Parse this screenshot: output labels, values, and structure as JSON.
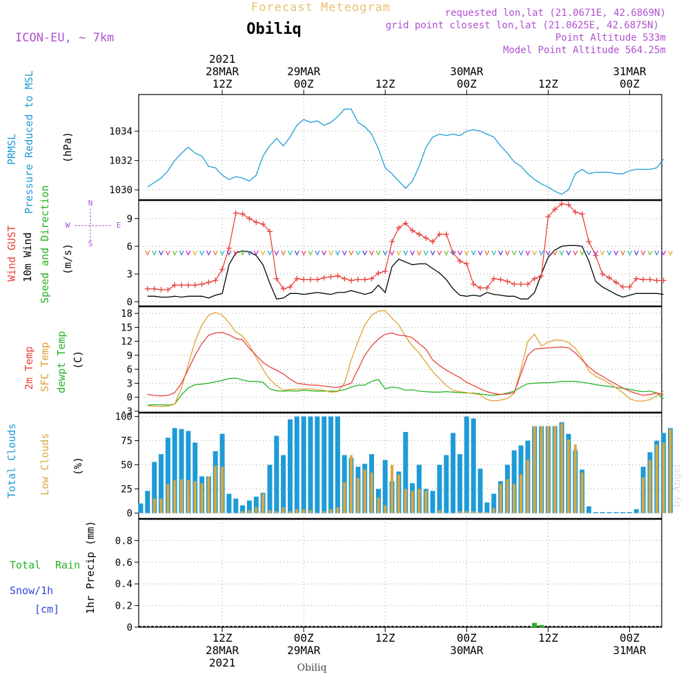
{
  "header": {
    "title": "Forecast Meteogram",
    "location": "Obiliq",
    "model": "ICON-EU, ~ 7km",
    "requested": "requested lon,lat (21.0671E, 42.6869N)",
    "gridpoint": "grid point closest lon,lat (21.0625E, 42.6875N)",
    "point_alt": "Point Altitude 533m",
    "model_alt": "Model Point Altitude 564.25m",
    "footer": "Obiliq",
    "credit": "by Angel"
  },
  "time_axis": {
    "year": "2021",
    "ticks": [
      {
        "t": 12,
        "top": [
          "2021",
          "28MAR",
          "12Z"
        ],
        "bottom": [
          "12Z",
          "28MAR",
          "2021"
        ]
      },
      {
        "t": 24,
        "top": [
          "29MAR",
          "00Z"
        ],
        "bottom": [
          "00Z",
          "29MAR"
        ]
      },
      {
        "t": 36,
        "top": [
          "12Z"
        ],
        "bottom": [
          "12Z"
        ]
      },
      {
        "t": 48,
        "top": [
          "30MAR",
          "00Z"
        ],
        "bottom": [
          "00Z",
          "30MAR"
        ]
      },
      {
        "t": 60,
        "top": [
          "12Z"
        ],
        "bottom": [
          "12Z"
        ]
      },
      {
        "t": 72,
        "top": [
          "31MAR",
          "00Z"
        ],
        "bottom": [
          "00Z",
          "31MAR"
        ]
      }
    ]
  },
  "panels": {
    "pressure": {
      "labels": [
        "PRMSL",
        "Pressure Reduced to MSL",
        "(hPa)"
      ],
      "colors": [
        "#1e9bd7",
        "#1e9bd7",
        "#000000"
      ]
    },
    "wind": {
      "labels": [
        "Wind GUST",
        "10m Wind",
        "Speed and Direction",
        "(m/s)"
      ],
      "colors": [
        "#e8413c",
        "#000000",
        "#22b322",
        "#000000"
      ],
      "compass": {
        "n": "N",
        "s": "S",
        "w": "W",
        "e": "E"
      }
    },
    "temp": {
      "labels": [
        "2m Temp",
        "SFC Temp",
        "dewpt Temp",
        "(C)"
      ],
      "colors": [
        "#e8413c",
        "#e0a030",
        "#22b322",
        "#000000"
      ]
    },
    "clouds": {
      "labels": [
        "Total Clouds",
        "Low Clouds",
        "(%)"
      ],
      "colors": [
        "#1e9bd7",
        "#d8a840",
        "#000000"
      ]
    },
    "precip": {
      "labels": [
        "Total",
        "Rain",
        "Snow/1h",
        "[cm]",
        "1hr Precip (mm)"
      ],
      "colors": [
        "#22b322",
        "#22b322",
        "#3344dd",
        "#3344dd",
        "#000000"
      ]
    }
  },
  "colors": {
    "pressure": "#1e9bd7",
    "gust": "#e8413c",
    "wind": "#000000",
    "t2m": "#e8413c",
    "tsfc": "#e0a030",
    "dewpt": "#22b322",
    "total_clouds": "#1e9bd7",
    "low_clouds": "#d8a840",
    "rain": "#22b322",
    "header_title": "#e8c070",
    "meta": "#b050d0"
  },
  "chart_data": [
    {
      "type": "line",
      "name": "pressure",
      "x_hours_from_28MAR00Z": [
        1,
        2,
        3,
        4,
        5,
        6,
        7,
        8,
        9,
        10,
        11,
        12,
        13,
        14,
        15,
        16,
        17,
        18,
        19,
        20,
        21,
        22,
        23,
        24,
        25,
        26,
        27,
        28,
        29,
        30,
        31,
        32,
        33,
        34,
        35,
        36,
        37,
        38,
        39,
        40,
        41,
        42,
        43,
        44,
        45,
        46,
        47,
        48,
        49,
        50,
        51,
        52,
        53,
        54,
        55,
        56,
        57,
        58,
        59,
        60,
        61,
        62,
        63,
        64,
        65,
        66,
        67,
        68,
        69,
        70,
        71,
        72,
        73,
        74,
        75,
        76,
        77,
        78
      ],
      "series": [
        {
          "name": "PRMSL",
          "values": [
            1030.2,
            1030.5,
            1030.8,
            1031.3,
            1032.0,
            1032.5,
            1032.9,
            1032.5,
            1032.3,
            1031.6,
            1031.5,
            1031.0,
            1030.7,
            1030.9,
            1030.8,
            1030.6,
            1031.0,
            1032.3,
            1033.0,
            1033.5,
            1033.0,
            1033.6,
            1034.4,
            1034.8,
            1034.6,
            1034.7,
            1034.4,
            1034.6,
            1035.0,
            1035.5,
            1035.5,
            1034.6,
            1034.3,
            1033.8,
            1032.8,
            1031.5,
            1031.1,
            1030.6,
            1030.1,
            1030.6,
            1031.6,
            1032.9,
            1033.6,
            1033.8,
            1033.7,
            1033.8,
            1033.7,
            1034.0,
            1034.1,
            1034.0,
            1033.8,
            1033.6,
            1033.0,
            1032.5,
            1031.9,
            1031.6,
            1031.1,
            1030.7,
            1030.4,
            1030.2,
            1029.9,
            1029.7,
            1030.0,
            1031.1,
            1031.4,
            1031.1,
            1031.2,
            1031.2,
            1031.2,
            1031.1,
            1031.1,
            1031.3,
            1031.4,
            1031.4,
            1031.4,
            1031.5,
            1032.1
          ]
        }
      ],
      "ylabel": "(hPa)",
      "ylim": [
        1029.3,
        1036.5
      ],
      "yticks": [
        1030,
        1032,
        1034
      ],
      "grid": true
    },
    {
      "type": "line",
      "name": "wind",
      "x_hours_from_28MAR00Z": [
        1,
        2,
        3,
        4,
        5,
        6,
        7,
        8,
        9,
        10,
        11,
        12,
        13,
        14,
        15,
        16,
        17,
        18,
        19,
        20,
        21,
        22,
        23,
        24,
        25,
        26,
        27,
        28,
        29,
        30,
        31,
        32,
        33,
        34,
        35,
        36,
        37,
        38,
        39,
        40,
        41,
        42,
        43,
        44,
        45,
        46,
        47,
        48,
        49,
        50,
        51,
        52,
        53,
        54,
        55,
        56,
        57,
        58,
        59,
        60,
        61,
        62,
        63,
        64,
        65,
        66,
        67,
        68,
        69,
        70,
        71,
        72,
        73,
        74,
        75,
        76,
        77,
        78
      ],
      "series": [
        {
          "name": "Wind GUST",
          "values": [
            1.4,
            1.4,
            1.3,
            1.3,
            1.8,
            1.8,
            1.8,
            1.8,
            1.9,
            2.1,
            2.3,
            3.5,
            5.8,
            9.6,
            9.5,
            9.0,
            8.6,
            8.4,
            7.6,
            2.5,
            1.4,
            1.6,
            2.5,
            2.4,
            2.4,
            2.4,
            2.6,
            2.7,
            2.8,
            2.5,
            2.3,
            2.4,
            2.4,
            2.5,
            3.1,
            3.3,
            6.5,
            8.0,
            8.5,
            7.7,
            7.3,
            6.9,
            6.5,
            7.3,
            7.3,
            5.3,
            4.4,
            4.1,
            1.9,
            1.5,
            1.5,
            2.5,
            2.4,
            2.2,
            1.9,
            1.9,
            1.9,
            2.5,
            2.8,
            9.2,
            10.0,
            10.6,
            10.5,
            9.7,
            9.5,
            6.5,
            5.0,
            3.0,
            2.6,
            2.1,
            1.6,
            1.6,
            2.5,
            2.4,
            2.4,
            2.3,
            2.3
          ]
        },
        {
          "name": "10m Wind",
          "values": [
            0.6,
            0.6,
            0.5,
            0.5,
            0.6,
            0.5,
            0.6,
            0.6,
            0.6,
            0.4,
            0.7,
            0.9,
            4.0,
            5.3,
            5.5,
            5.4,
            5.0,
            4.0,
            2.0,
            0.3,
            0.4,
            0.9,
            0.9,
            0.8,
            0.9,
            1.0,
            0.9,
            0.8,
            1.0,
            1.0,
            1.2,
            1.0,
            0.8,
            1.0,
            1.8,
            1.0,
            3.8,
            4.6,
            4.3,
            4.0,
            4.1,
            4.1,
            3.6,
            3.1,
            2.4,
            1.4,
            0.7,
            0.6,
            0.7,
            0.6,
            1.0,
            0.8,
            0.7,
            0.6,
            0.6,
            0.3,
            0.3,
            1.0,
            3.0,
            4.8,
            5.6,
            6.0,
            6.1,
            6.1,
            6.0,
            4.4,
            2.2,
            1.6,
            1.2,
            0.8,
            0.5,
            0.7,
            0.9,
            0.9,
            0.9,
            0.9,
            0.8
          ]
        }
      ],
      "ylabel": "(m/s)",
      "ylim": [
        -0.5,
        11
      ],
      "yticks": [
        0,
        3,
        6,
        9
      ],
      "grid": true
    },
    {
      "type": "line",
      "name": "temperature",
      "x_hours_from_28MAR00Z": [
        1,
        2,
        3,
        4,
        5,
        6,
        7,
        8,
        9,
        10,
        11,
        12,
        13,
        14,
        15,
        16,
        17,
        18,
        19,
        20,
        21,
        22,
        23,
        24,
        25,
        26,
        27,
        28,
        29,
        30,
        31,
        32,
        33,
        34,
        35,
        36,
        37,
        38,
        39,
        40,
        41,
        42,
        43,
        44,
        45,
        46,
        47,
        48,
        49,
        50,
        51,
        52,
        53,
        54,
        55,
        56,
        57,
        58,
        59,
        60,
        61,
        62,
        63,
        64,
        65,
        66,
        67,
        68,
        69,
        70,
        71,
        72,
        73,
        74,
        75,
        76,
        77,
        78
      ],
      "series": [
        {
          "name": "2m Temp",
          "values": [
            0.6,
            0.4,
            0.3,
            0.4,
            1.0,
            3.0,
            6.0,
            9.0,
            11.5,
            13.3,
            13.8,
            13.9,
            13.4,
            12.6,
            12.3,
            10.5,
            9.0,
            7.5,
            6.5,
            5.8,
            5.0,
            3.9,
            3.0,
            2.8,
            2.6,
            2.6,
            2.4,
            2.2,
            2.1,
            2.5,
            3.0,
            6.0,
            9.0,
            11.0,
            12.5,
            13.5,
            13.8,
            13.3,
            13.2,
            12.8,
            11.5,
            10.3,
            8.0,
            6.8,
            5.8,
            5.0,
            4.2,
            3.2,
            2.5,
            1.8,
            1.2,
            0.8,
            0.6,
            0.7,
            1.0,
            5.0,
            9.0,
            10.3,
            10.5,
            10.6,
            10.7,
            10.8,
            10.6,
            9.5,
            8.0,
            6.5,
            5.3,
            4.5,
            3.6,
            2.8,
            2.0,
            1.3,
            0.8,
            0.4,
            0.6,
            0.9,
            0.5
          ]
        },
        {
          "name": "SFC Temp",
          "values": [
            -1.8,
            -1.9,
            -2.0,
            -1.9,
            -1.5,
            2.0,
            7.0,
            12.0,
            15.5,
            17.6,
            18.2,
            17.6,
            16.0,
            14.0,
            13.1,
            11.2,
            8.5,
            6.0,
            3.8,
            2.5,
            1.5,
            1.7,
            1.7,
            1.8,
            1.8,
            1.6,
            1.5,
            1.1,
            1.2,
            3.0,
            8.0,
            12.0,
            15.5,
            17.6,
            18.5,
            18.6,
            17.0,
            15.5,
            13.0,
            11.0,
            9.5,
            7.5,
            5.5,
            4.0,
            2.5,
            1.5,
            1.2,
            1.0,
            0.8,
            0.5,
            -0.5,
            -0.8,
            -0.6,
            -0.3,
            0.8,
            6.0,
            12.0,
            13.5,
            11.0,
            11.8,
            12.3,
            12.2,
            11.8,
            10.5,
            8.5,
            5.6,
            4.5,
            3.8,
            3.0,
            2.0,
            1.0,
            -0.3,
            -0.8,
            -0.8,
            -0.5,
            0.3,
            1.3
          ]
        },
        {
          "name": "dewpt Temp",
          "values": [
            -1.7,
            -1.6,
            -1.6,
            -1.7,
            -1.5,
            0.5,
            2.0,
            2.7,
            2.8,
            3.0,
            3.3,
            3.6,
            4.0,
            4.1,
            3.7,
            3.4,
            3.4,
            3.2,
            1.8,
            1.4,
            1.3,
            1.4,
            1.3,
            1.5,
            1.4,
            1.3,
            1.3,
            1.3,
            1.3,
            1.6,
            2.2,
            2.6,
            2.6,
            3.4,
            3.8,
            1.8,
            2.2,
            2.0,
            1.5,
            1.6,
            1.3,
            1.2,
            1.1,
            1.1,
            1.2,
            1.1,
            1.0,
            0.9,
            0.9,
            0.7,
            0.5,
            0.4,
            0.6,
            0.9,
            1.3,
            2.2,
            2.9,
            3.0,
            3.1,
            3.1,
            3.2,
            3.4,
            3.4,
            3.4,
            3.2,
            3.0,
            2.7,
            2.5,
            2.3,
            2.1,
            1.9,
            1.7,
            1.4,
            1.2,
            1.3,
            0.9,
            -0.3
          ]
        }
      ],
      "ylabel": "(C)",
      "ylim": [
        -3.3,
        19.5
      ],
      "yticks": [
        -3,
        0,
        3,
        6,
        9,
        12,
        15,
        18
      ],
      "grid": true
    },
    {
      "type": "bar",
      "name": "clouds",
      "x_hours_from_28MAR00Z": [
        0,
        1,
        2,
        3,
        4,
        5,
        6,
        7,
        8,
        9,
        10,
        11,
        12,
        13,
        14,
        15,
        16,
        17,
        18,
        19,
        20,
        21,
        22,
        23,
        24,
        25,
        26,
        27,
        28,
        29,
        30,
        31,
        32,
        33,
        34,
        35,
        36,
        37,
        38,
        39,
        40,
        41,
        42,
        43,
        44,
        45,
        46,
        47,
        48,
        49,
        50,
        51,
        52,
        53,
        54,
        55,
        56,
        57,
        58,
        59,
        60,
        61,
        62,
        63,
        64,
        65,
        66,
        67,
        68,
        69,
        70,
        71,
        72,
        73,
        74,
        75,
        76,
        77,
        78
      ],
      "series": [
        {
          "name": "Total Clouds",
          "values": [
            10,
            23,
            53,
            61,
            78,
            88,
            87,
            85,
            73,
            38,
            38,
            64,
            82,
            20,
            15,
            8,
            13,
            17,
            21,
            50,
            80,
            60,
            97,
            100,
            100,
            100,
            100,
            100,
            100,
            100,
            60,
            57,
            48,
            51,
            61,
            25,
            55,
            33,
            43,
            84,
            31,
            50,
            25,
            23,
            50,
            60,
            83,
            61,
            100,
            98,
            46,
            11,
            20,
            33,
            50,
            65,
            70,
            75,
            90,
            90,
            90,
            90,
            94,
            82,
            65,
            45,
            7,
            1,
            1,
            1,
            1,
            1,
            1,
            4,
            48,
            63,
            75,
            83,
            88
          ]
        },
        {
          "name": "Low Clouds",
          "values": [
            0,
            0,
            15,
            15,
            30,
            34,
            35,
            34,
            33,
            31,
            38,
            49,
            48,
            0,
            0,
            2,
            3,
            6,
            20,
            3,
            2,
            6,
            2,
            4,
            4,
            3,
            0,
            2,
            4,
            6,
            32,
            60,
            36,
            45,
            42,
            16,
            8,
            50,
            40,
            25,
            23,
            25,
            23,
            0,
            3,
            0,
            0,
            2,
            2,
            2,
            1,
            1,
            5,
            30,
            35,
            30,
            40,
            55,
            90,
            90,
            90,
            90,
            93,
            76,
            71,
            42,
            0,
            0,
            0,
            0,
            0,
            0,
            0,
            0,
            37,
            55,
            71,
            73,
            87
          ]
        }
      ],
      "ylabel": "(%)",
      "ylim": [
        -6,
        104
      ],
      "yticks": [
        0,
        25,
        50,
        75,
        100
      ],
      "grid": true
    },
    {
      "type": "bar",
      "name": "precip",
      "x_hours_from_28MAR00Z": [
        58,
        59
      ],
      "series": [
        {
          "name": "Total Rain",
          "values": [
            0.04,
            0.02
          ]
        }
      ],
      "ylabel": "1hr Precip (mm)",
      "ylim": [
        0,
        1.0
      ],
      "yticks": [
        0,
        0.2,
        0.4,
        0.6,
        0.8
      ],
      "grid": true
    }
  ]
}
